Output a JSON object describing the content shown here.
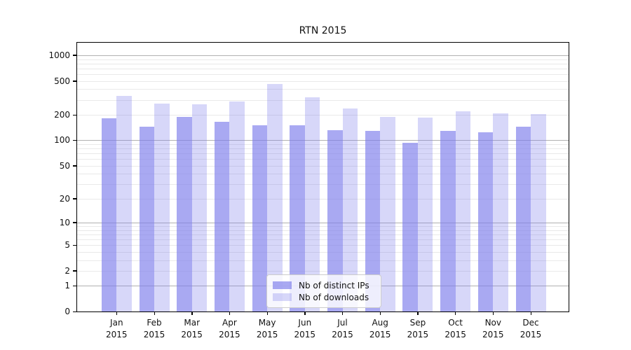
{
  "title": "RTN 2015",
  "chart_data": {
    "type": "bar",
    "title": "RTN 2015",
    "scale": "log1p",
    "grid": "horizontal, minor + darker decade lines",
    "legend_position": "bottom-center",
    "xlabel": "",
    "ylabel": "",
    "ylim": [
      0,
      1400
    ],
    "y_ticks": [
      1000,
      500,
      200,
      100,
      50,
      20,
      10,
      5,
      2,
      1,
      0
    ],
    "categories": [
      "Jan",
      "Feb",
      "Mar",
      "Apr",
      "May",
      "Jun",
      "Jul",
      "Aug",
      "Sep",
      "Oct",
      "Nov",
      "Dec"
    ],
    "year": "2015",
    "series": [
      {
        "name": "Nb of distinct IPs",
        "color": "#7c7ceb",
        "alpha": 0.66,
        "values": [
          181,
          146,
          190,
          164,
          150,
          151,
          132,
          129,
          94,
          129,
          125,
          144
        ]
      },
      {
        "name": "Nb of downloads",
        "color": "#7c7ceb",
        "alpha": 0.3,
        "values": [
          331,
          273,
          265,
          285,
          462,
          323,
          238,
          188,
          184,
          219,
          209,
          203
        ]
      }
    ],
    "colors": {
      "bar_dark": "#a8a8f0",
      "bar_light": "#d8d8fa",
      "grid_major": "#b0b0b0",
      "grid_minor": "#e9e9e9",
      "axis": "#000000",
      "text": "#111111"
    }
  }
}
